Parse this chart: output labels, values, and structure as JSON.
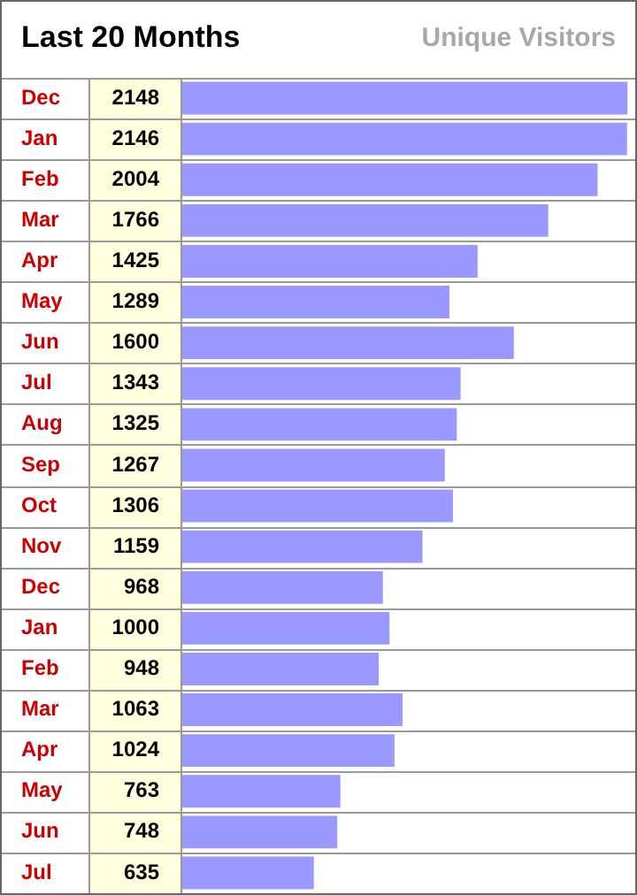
{
  "chart_data": {
    "type": "bar",
    "orientation": "horizontal",
    "title": "Last 20 Months",
    "subtitle": "Unique Visitors",
    "categories": [
      "Dec",
      "Jan",
      "Feb",
      "Mar",
      "Apr",
      "May",
      "Jun",
      "Jul",
      "Aug",
      "Sep",
      "Oct",
      "Nov",
      "Dec",
      "Jan",
      "Feb",
      "Mar",
      "Apr",
      "May",
      "Jun",
      "Jul"
    ],
    "values": [
      2148,
      2146,
      2004,
      1766,
      1425,
      1289,
      1600,
      1343,
      1325,
      1267,
      1306,
      1159,
      968,
      1000,
      948,
      1063,
      1024,
      763,
      748,
      635
    ],
    "color": "#9999ff",
    "xlim": [
      0,
      2160
    ],
    "data_labels": true,
    "grid": "y",
    "legend": false
  }
}
